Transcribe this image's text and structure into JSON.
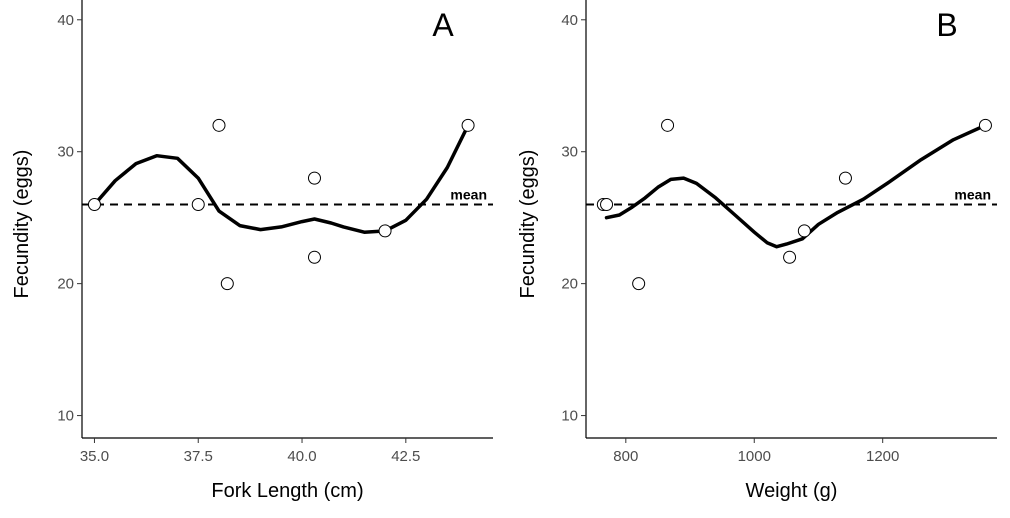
{
  "chart_data": [
    {
      "type": "scatter",
      "panel_label": "A",
      "xlabel": "Fork Length (cm)",
      "ylabel": "Fecundity (eggs)",
      "xlim": [
        34.7,
        44.6
      ],
      "ylim": [
        8.3,
        41.5
      ],
      "x_ticks": [
        35.0,
        37.5,
        40.0,
        42.5
      ],
      "x_tick_labels": [
        "35.0",
        "37.5",
        "40.0",
        "42.5"
      ],
      "y_ticks": [
        10,
        20,
        30,
        40
      ],
      "y_tick_labels": [
        "10",
        "20",
        "30",
        "40"
      ],
      "grid": false,
      "points": [
        {
          "x": 35.0,
          "y": 26
        },
        {
          "x": 37.5,
          "y": 26
        },
        {
          "x": 38.0,
          "y": 32
        },
        {
          "x": 38.2,
          "y": 20
        },
        {
          "x": 40.3,
          "y": 28
        },
        {
          "x": 40.3,
          "y": 22
        },
        {
          "x": 42.0,
          "y": 24
        },
        {
          "x": 44.0,
          "y": 32
        }
      ],
      "smooth_curve": [
        [
          35.0,
          26.0
        ],
        [
          35.5,
          27.8
        ],
        [
          36.0,
          29.1
        ],
        [
          36.5,
          29.7
        ],
        [
          37.0,
          29.5
        ],
        [
          37.5,
          28.0
        ],
        [
          38.0,
          25.5
        ],
        [
          38.5,
          24.4
        ],
        [
          39.0,
          24.1
        ],
        [
          39.5,
          24.3
        ],
        [
          40.0,
          24.7
        ],
        [
          40.3,
          24.9
        ],
        [
          40.7,
          24.6
        ],
        [
          41.0,
          24.3
        ],
        [
          41.5,
          23.9
        ],
        [
          42.0,
          24.0
        ],
        [
          42.5,
          24.8
        ],
        [
          43.0,
          26.4
        ],
        [
          43.5,
          28.8
        ],
        [
          44.0,
          32.0
        ]
      ],
      "mean_line": {
        "y": 26,
        "label": "mean"
      }
    },
    {
      "type": "scatter",
      "panel_label": "B",
      "xlabel": "Weight (g)",
      "ylabel": "Fecundity (eggs)",
      "xlim": [
        738,
        1378
      ],
      "ylim": [
        8.3,
        41.5
      ],
      "x_ticks": [
        800,
        1000,
        1200
      ],
      "x_tick_labels": [
        "800",
        "1000",
        "1200"
      ],
      "y_ticks": [
        10,
        20,
        30,
        40
      ],
      "y_tick_labels": [
        "10",
        "20",
        "30",
        "40"
      ],
      "grid": false,
      "points": [
        {
          "x": 765,
          "y": 26
        },
        {
          "x": 770,
          "y": 26
        },
        {
          "x": 820,
          "y": 20
        },
        {
          "x": 865,
          "y": 32
        },
        {
          "x": 1055,
          "y": 22
        },
        {
          "x": 1078,
          "y": 24
        },
        {
          "x": 1142,
          "y": 28
        },
        {
          "x": 1360,
          "y": 32
        }
      ],
      "smooth_curve": [
        [
          770,
          25.0
        ],
        [
          790,
          25.2
        ],
        [
          810,
          25.8
        ],
        [
          830,
          26.5
        ],
        [
          850,
          27.3
        ],
        [
          870,
          27.9
        ],
        [
          890,
          28.0
        ],
        [
          910,
          27.6
        ],
        [
          940,
          26.5
        ],
        [
          970,
          25.2
        ],
        [
          1000,
          23.9
        ],
        [
          1020,
          23.1
        ],
        [
          1035,
          22.8
        ],
        [
          1050,
          23.0
        ],
        [
          1075,
          23.4
        ],
        [
          1100,
          24.5
        ],
        [
          1130,
          25.4
        ],
        [
          1170,
          26.4
        ],
        [
          1210,
          27.7
        ],
        [
          1260,
          29.4
        ],
        [
          1310,
          30.9
        ],
        [
          1360,
          32.0
        ]
      ],
      "mean_line": {
        "y": 26,
        "label": "mean"
      }
    }
  ]
}
